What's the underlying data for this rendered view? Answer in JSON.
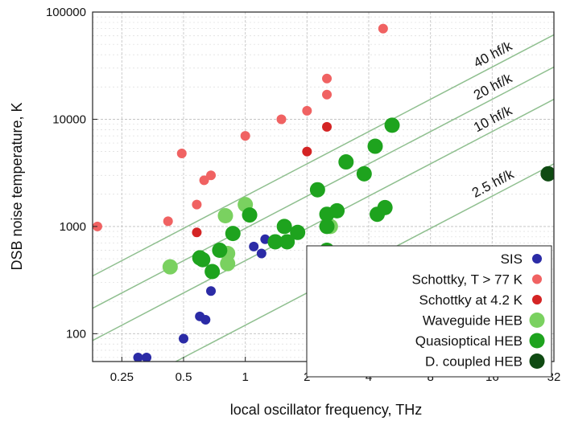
{
  "chart_data": {
    "type": "scatter",
    "xlabel": "local oscillator frequency, THz",
    "ylabel": "DSB noise temperature, K",
    "xscale": "log2",
    "yscale": "log10",
    "xlim": [
      0.18,
      32
    ],
    "ylim": [
      55,
      100000
    ],
    "x_ticks": [
      {
        "value": 0.25,
        "label": "0.25"
      },
      {
        "value": 0.5,
        "label": "0.5"
      },
      {
        "value": 1,
        "label": "1"
      },
      {
        "value": 2,
        "label": "2"
      },
      {
        "value": 4,
        "label": "4"
      },
      {
        "value": 8,
        "label": "8"
      },
      {
        "value": 16,
        "label": "16"
      },
      {
        "value": 32,
        "label": "32"
      }
    ],
    "y_ticks": [
      {
        "value": 100,
        "label": "100"
      },
      {
        "value": 1000,
        "label": "1000"
      },
      {
        "value": 10000,
        "label": "10000"
      },
      {
        "value": 100000,
        "label": "100000"
      }
    ],
    "grid": true,
    "legend_position": "bottom-right",
    "reference_lines": [
      {
        "label": "40 hf/k",
        "factor": 40
      },
      {
        "label": "20 hf/k",
        "factor": 20
      },
      {
        "label": "10 hf/k",
        "factor": 10
      },
      {
        "label": "2.5 hf/k",
        "factor": 2.5
      }
    ],
    "series": [
      {
        "name": "SIS",
        "color": "#2b2ba6",
        "marker_size": "small",
        "points": [
          {
            "x": 0.3,
            "y": 60
          },
          {
            "x": 0.33,
            "y": 60
          },
          {
            "x": 0.5,
            "y": 90
          },
          {
            "x": 0.6,
            "y": 145
          },
          {
            "x": 0.64,
            "y": 135
          },
          {
            "x": 0.68,
            "y": 250
          },
          {
            "x": 1.1,
            "y": 650
          },
          {
            "x": 1.2,
            "y": 560
          },
          {
            "x": 1.25,
            "y": 760
          }
        ]
      },
      {
        "name": "Schottky, T > 77 K",
        "color": "#f06262",
        "marker_size": "small",
        "points": [
          {
            "x": 0.19,
            "y": 1000
          },
          {
            "x": 0.42,
            "y": 1120
          },
          {
            "x": 0.49,
            "y": 4800
          },
          {
            "x": 0.58,
            "y": 1600
          },
          {
            "x": 0.63,
            "y": 2700
          },
          {
            "x": 0.68,
            "y": 3000
          },
          {
            "x": 1.0,
            "y": 7000
          },
          {
            "x": 1.5,
            "y": 10000
          },
          {
            "x": 2.0,
            "y": 12000
          },
          {
            "x": 2.5,
            "y": 17000
          },
          {
            "x": 2.5,
            "y": 24000
          },
          {
            "x": 4.7,
            "y": 70000
          }
        ]
      },
      {
        "name": "Schottky at 4.2 K",
        "color": "#d42424",
        "marker_size": "small",
        "points": [
          {
            "x": 0.58,
            "y": 880
          },
          {
            "x": 2.0,
            "y": 5000
          },
          {
            "x": 2.5,
            "y": 8500
          }
        ]
      },
      {
        "name": "Waveguide HEB",
        "color": "#7ad160",
        "marker_size": "large",
        "points": [
          {
            "x": 0.43,
            "y": 420
          },
          {
            "x": 0.8,
            "y": 1260
          },
          {
            "x": 0.82,
            "y": 560
          },
          {
            "x": 0.82,
            "y": 450
          },
          {
            "x": 1.0,
            "y": 1600
          },
          {
            "x": 2.6,
            "y": 1000
          }
        ]
      },
      {
        "name": "Quasioptical HEB",
        "color": "#1ea31e",
        "marker_size": "large",
        "points": [
          {
            "x": 0.6,
            "y": 510
          },
          {
            "x": 0.62,
            "y": 490
          },
          {
            "x": 0.69,
            "y": 380
          },
          {
            "x": 0.75,
            "y": 600
          },
          {
            "x": 0.87,
            "y": 860
          },
          {
            "x": 1.05,
            "y": 1280
          },
          {
            "x": 1.4,
            "y": 720
          },
          {
            "x": 1.55,
            "y": 1000
          },
          {
            "x": 1.6,
            "y": 720
          },
          {
            "x": 1.8,
            "y": 880
          },
          {
            "x": 2.25,
            "y": 2200
          },
          {
            "x": 2.5,
            "y": 1300
          },
          {
            "x": 2.5,
            "y": 1000
          },
          {
            "x": 2.5,
            "y": 600
          },
          {
            "x": 2.8,
            "y": 1400
          },
          {
            "x": 3.1,
            "y": 4000
          },
          {
            "x": 3.8,
            "y": 3100
          },
          {
            "x": 4.3,
            "y": 5600
          },
          {
            "x": 4.4,
            "y": 1300
          },
          {
            "x": 4.8,
            "y": 1500
          },
          {
            "x": 5.2,
            "y": 8800
          }
        ]
      },
      {
        "name": "D. coupled HEB",
        "color": "#0f4a12",
        "marker_size": "large",
        "points": [
          {
            "x": 30,
            "y": 3100
          }
        ]
      }
    ]
  }
}
